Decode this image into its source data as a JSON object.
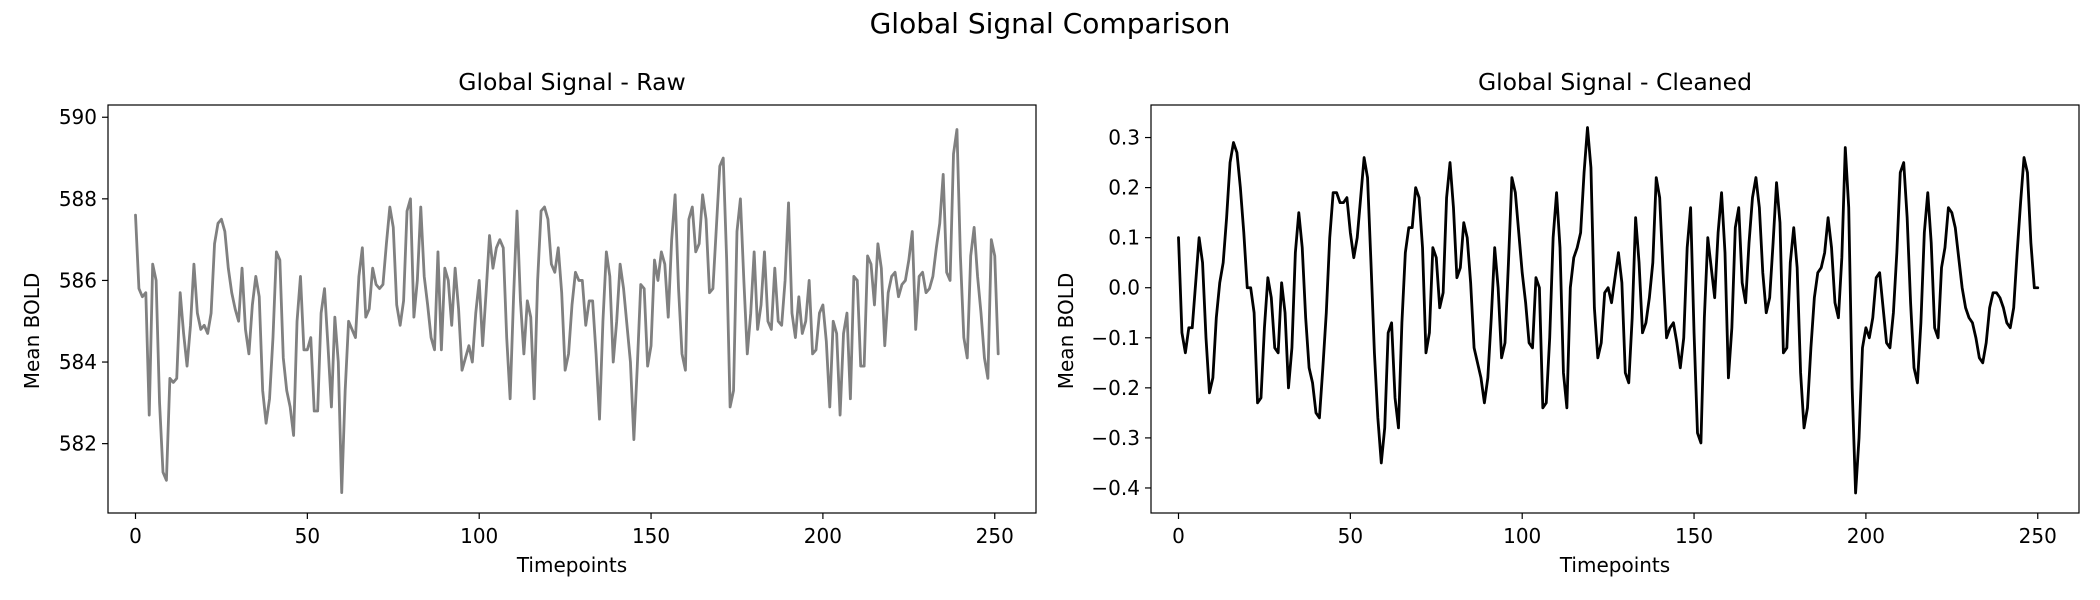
{
  "figure_title": "Global Signal Comparison",
  "chart_data": [
    {
      "type": "line",
      "title": "Global Signal - Raw",
      "xlabel": "Timepoints",
      "ylabel": "Mean BOLD",
      "xlim": [
        -8,
        262
      ],
      "ylim": [
        580.3,
        590.3
      ],
      "xticks": [
        0,
        50,
        100,
        150,
        200,
        250
      ],
      "yticks": [
        582,
        584,
        586,
        588,
        590
      ],
      "grid": false,
      "color": "#808080",
      "series": [
        {
          "values": [
            587.6,
            585.8,
            585.6,
            585.7,
            582.7,
            586.4,
            586.0,
            583.0,
            581.3,
            581.1,
            583.6,
            583.5,
            583.6,
            585.7,
            584.7,
            583.9,
            584.9,
            586.4,
            585.2,
            584.8,
            584.9,
            584.7,
            585.2,
            586.9,
            587.4,
            587.5,
            587.2,
            586.3,
            585.7,
            585.3,
            585.0,
            586.3,
            584.8,
            584.2,
            585.4,
            586.1,
            585.6,
            583.3,
            582.5,
            583.1,
            584.6,
            586.7,
            586.5,
            584.1,
            583.3,
            582.9,
            582.2,
            585.0,
            586.1,
            584.3,
            584.3,
            584.6,
            582.8,
            582.8,
            585.2,
            585.8,
            584.4,
            582.9,
            585.1,
            584.0,
            580.8,
            583.3,
            585.0,
            584.8,
            584.6,
            586.1,
            586.8,
            585.1,
            585.3,
            586.3,
            585.9,
            585.8,
            585.9,
            586.9,
            587.8,
            587.3,
            585.4,
            584.9,
            585.5,
            587.7,
            588.0,
            585.1,
            586.0,
            587.8,
            586.1,
            585.4,
            584.6,
            584.3,
            586.7,
            584.3,
            586.3,
            586.0,
            584.9,
            586.3,
            585.3,
            583.8,
            584.1,
            584.4,
            584.0,
            585.2,
            586.0,
            584.4,
            585.7,
            587.1,
            586.3,
            586.8,
            587.0,
            586.8,
            584.6,
            583.1,
            585.6,
            587.7,
            585.5,
            584.2,
            585.5,
            585.1,
            583.1,
            586.0,
            587.7,
            587.8,
            587.5,
            586.4,
            586.2,
            586.8,
            585.7,
            583.8,
            584.2,
            585.4,
            586.2,
            586.0,
            586.0,
            584.9,
            585.5,
            585.5,
            584.2,
            582.6,
            585.0,
            586.7,
            586.1,
            584.0,
            585.0,
            586.4,
            585.8,
            584.9,
            584.0,
            582.1,
            583.9,
            585.9,
            585.8,
            583.9,
            584.4,
            586.5,
            586.0,
            586.7,
            586.4,
            585.1,
            587.0,
            588.1,
            585.8,
            584.2,
            583.8,
            587.5,
            587.8,
            586.7,
            586.9,
            588.1,
            587.5,
            585.7,
            585.8,
            587.3,
            588.8,
            589.0,
            586.5,
            582.9,
            583.3,
            587.2,
            588.0,
            586.0,
            584.2,
            585.2,
            586.7,
            584.8,
            585.4,
            586.7,
            585.0,
            584.8,
            586.3,
            585.0,
            584.9,
            586.0,
            587.9,
            585.2,
            584.6,
            585.6,
            584.7,
            585.0,
            586.0,
            584.2,
            584.3,
            585.2,
            585.4,
            584.5,
            582.9,
            585.0,
            584.7,
            582.7,
            584.7,
            585.2,
            583.1,
            586.1,
            586.0,
            583.9,
            583.9,
            586.6,
            586.4,
            585.4,
            586.9,
            586.3,
            584.4,
            585.7,
            586.1,
            586.2,
            585.6,
            585.9,
            586.0,
            586.5,
            587.2,
            584.8,
            586.1,
            586.2,
            585.7,
            585.8,
            586.1,
            586.8,
            587.4,
            588.6,
            586.2,
            586.0,
            589.1,
            589.7,
            586.6,
            584.6,
            584.1,
            586.6,
            587.3,
            586.1,
            585.2,
            584.1,
            583.6,
            587.0,
            586.6,
            584.2
          ]
        }
      ]
    },
    {
      "type": "line",
      "title": "Global Signal - Cleaned",
      "xlabel": "Timepoints",
      "ylabel": "Mean BOLD",
      "xlim": [
        -8,
        262
      ],
      "ylim": [
        -0.45,
        0.365
      ],
      "xticks": [
        0,
        50,
        100,
        150,
        200,
        250
      ],
      "yticks": [
        -0.4,
        -0.3,
        -0.2,
        -0.1,
        0.0,
        0.1,
        0.2,
        0.3
      ],
      "ytick_labels": [
        "−0.4",
        "−0.3",
        "−0.2",
        "−0.1",
        "0.0",
        "0.1",
        "0.2",
        "0.3"
      ],
      "grid": false,
      "color": "#000000",
      "series": [
        {
          "values": [
            0.1,
            -0.09,
            -0.13,
            -0.08,
            -0.08,
            0.01,
            0.1,
            0.05,
            -0.1,
            -0.21,
            -0.18,
            -0.06,
            0.01,
            0.05,
            0.14,
            0.25,
            0.29,
            0.27,
            0.2,
            0.11,
            0.0,
            0.0,
            -0.05,
            -0.23,
            -0.22,
            -0.08,
            0.02,
            -0.02,
            -0.12,
            -0.13,
            0.01,
            -0.05,
            -0.2,
            -0.12,
            0.07,
            0.15,
            0.08,
            -0.06,
            -0.16,
            -0.19,
            -0.25,
            -0.26,
            -0.16,
            -0.05,
            0.1,
            0.19,
            0.19,
            0.17,
            0.17,
            0.18,
            0.11,
            0.06,
            0.1,
            0.18,
            0.26,
            0.22,
            0.05,
            -0.13,
            -0.26,
            -0.35,
            -0.28,
            -0.09,
            -0.07,
            -0.22,
            -0.28,
            -0.07,
            0.07,
            0.12,
            0.12,
            0.2,
            0.18,
            0.08,
            -0.13,
            -0.09,
            0.08,
            0.06,
            -0.04,
            -0.01,
            0.18,
            0.25,
            0.16,
            0.02,
            0.04,
            0.13,
            0.1,
            0.01,
            -0.12,
            -0.15,
            -0.18,
            -0.23,
            -0.18,
            -0.06,
            0.08,
            0.0,
            -0.14,
            -0.11,
            0.05,
            0.22,
            0.19,
            0.11,
            0.03,
            -0.03,
            -0.11,
            -0.12,
            0.02,
            0.0,
            -0.24,
            -0.23,
            -0.1,
            0.1,
            0.19,
            0.08,
            -0.17,
            -0.24,
            0.0,
            0.06,
            0.08,
            0.11,
            0.23,
            0.32,
            0.24,
            -0.04,
            -0.14,
            -0.11,
            -0.01,
            0.0,
            -0.03,
            0.02,
            0.07,
            0.01,
            -0.17,
            -0.19,
            -0.06,
            0.14,
            0.05,
            -0.09,
            -0.07,
            -0.02,
            0.05,
            0.22,
            0.18,
            0.03,
            -0.1,
            -0.08,
            -0.07,
            -0.11,
            -0.16,
            -0.1,
            0.08,
            0.16,
            -0.09,
            -0.29,
            -0.31,
            -0.06,
            0.1,
            0.04,
            -0.02,
            0.11,
            0.19,
            0.07,
            -0.18,
            -0.08,
            0.12,
            0.16,
            0.01,
            -0.03,
            0.09,
            0.18,
            0.22,
            0.16,
            0.03,
            -0.05,
            -0.02,
            0.09,
            0.21,
            0.13,
            -0.13,
            -0.12,
            0.05,
            0.12,
            0.04,
            -0.17,
            -0.28,
            -0.24,
            -0.12,
            -0.02,
            0.03,
            0.04,
            0.07,
            0.14,
            0.08,
            -0.03,
            -0.06,
            0.06,
            0.28,
            0.16,
            -0.2,
            -0.41,
            -0.3,
            -0.12,
            -0.08,
            -0.1,
            -0.06,
            0.02,
            0.03,
            -0.04,
            -0.11,
            -0.12,
            -0.05,
            0.07,
            0.23,
            0.25,
            0.14,
            -0.03,
            -0.16,
            -0.19,
            -0.07,
            0.11,
            0.19,
            0.09,
            -0.08,
            -0.1,
            0.04,
            0.08,
            0.16,
            0.15,
            0.12,
            0.06,
            0.0,
            -0.04,
            -0.06,
            -0.07,
            -0.1,
            -0.14,
            -0.15,
            -0.11,
            -0.04,
            -0.01,
            -0.01,
            -0.02,
            -0.04,
            -0.07,
            -0.08,
            -0.04,
            0.07,
            0.17,
            0.26,
            0.23,
            0.09,
            0.0,
            0.0
          ]
        }
      ]
    }
  ]
}
